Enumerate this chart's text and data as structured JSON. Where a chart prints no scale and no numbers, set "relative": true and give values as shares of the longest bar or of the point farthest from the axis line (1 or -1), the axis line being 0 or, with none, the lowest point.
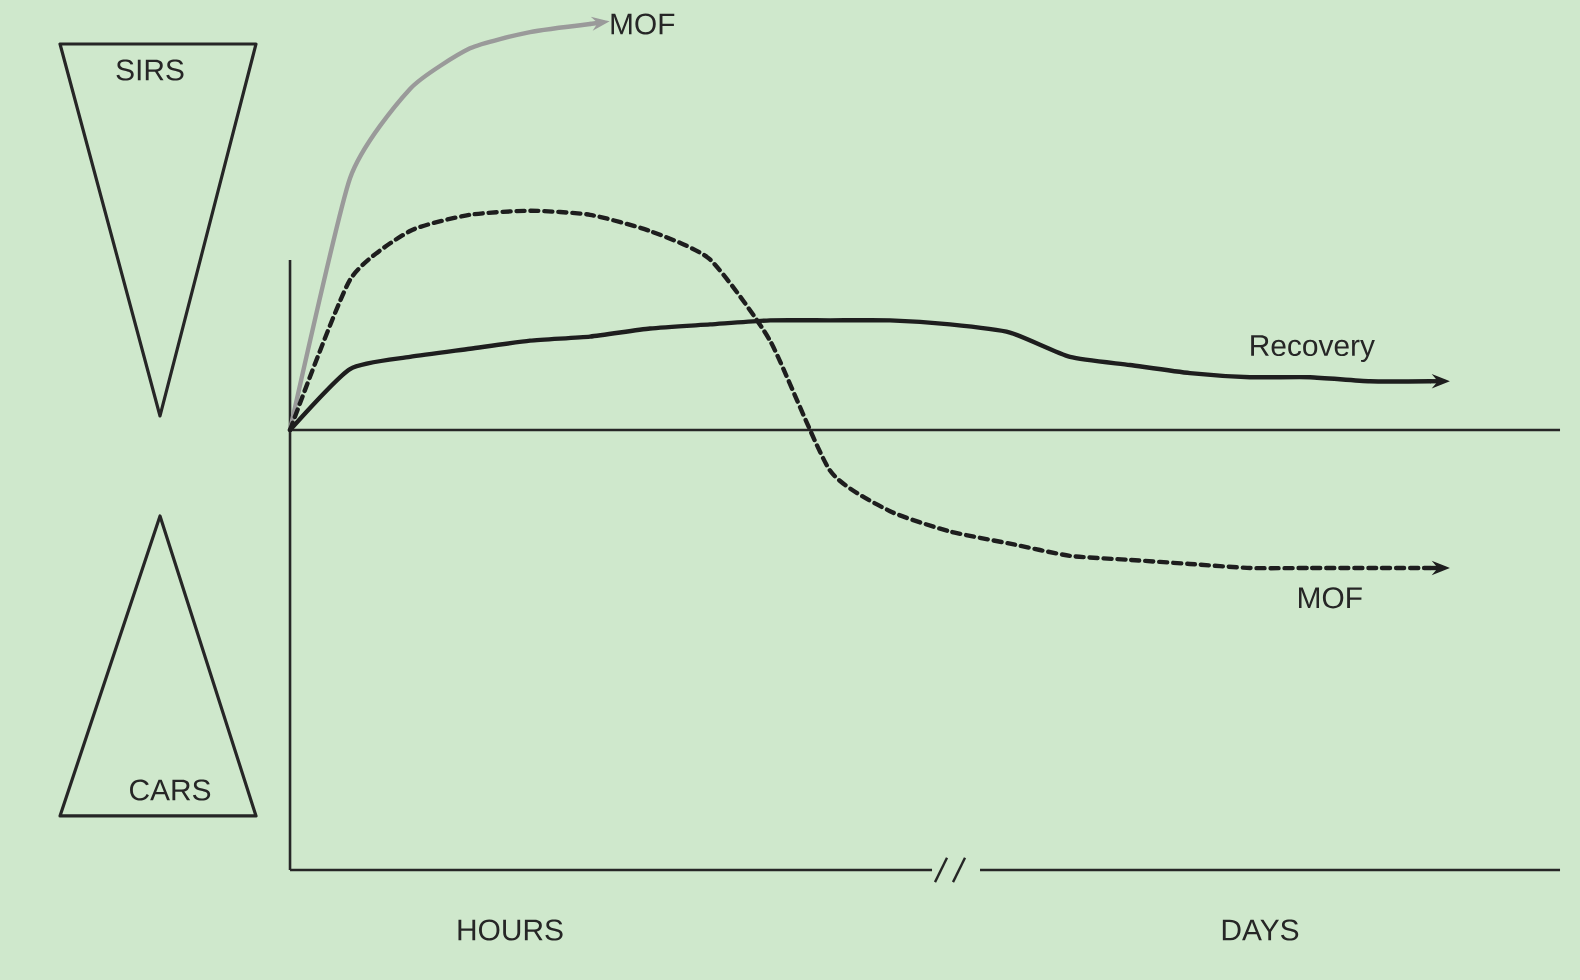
{
  "chart_data": {
    "type": "line",
    "relative": true,
    "categories": [
      null,
      null,
      null,
      null,
      null,
      null,
      null,
      null,
      null,
      null,
      null,
      null,
      null,
      null,
      null,
      null,
      null,
      null,
      null,
      null
    ],
    "series": [
      {
        "name": "MOF",
        "color": "#9a9a9a",
        "line_style": "solid",
        "values": [
          0,
          0.62,
          0.84,
          0.94,
          0.98,
          1.0,
          null,
          null,
          null,
          null,
          null,
          null,
          null,
          null,
          null,
          null,
          null,
          null,
          null,
          null
        ]
      },
      {
        "name": "MOF",
        "color": "#1e1e1e",
        "line_style": "dotted",
        "values": [
          0,
          0.37,
          0.49,
          0.53,
          0.54,
          0.53,
          0.49,
          0.42,
          0.22,
          -0.1,
          -0.2,
          -0.25,
          -0.28,
          -0.31,
          -0.32,
          -0.33,
          -0.34,
          -0.34,
          -0.34,
          -0.34
        ]
      },
      {
        "name": "Recovery",
        "color": "#1e1e1e",
        "line_style": "solid",
        "values": [
          0,
          0.15,
          0.18,
          0.2,
          0.22,
          0.23,
          0.25,
          0.26,
          0.27,
          0.27,
          0.27,
          0.26,
          0.24,
          0.18,
          0.16,
          0.14,
          0.13,
          0.13,
          0.12,
          0.12
        ]
      }
    ],
    "annotations": [
      "SIRS",
      "CARS",
      "HOURS",
      "DAYS"
    ]
  }
}
